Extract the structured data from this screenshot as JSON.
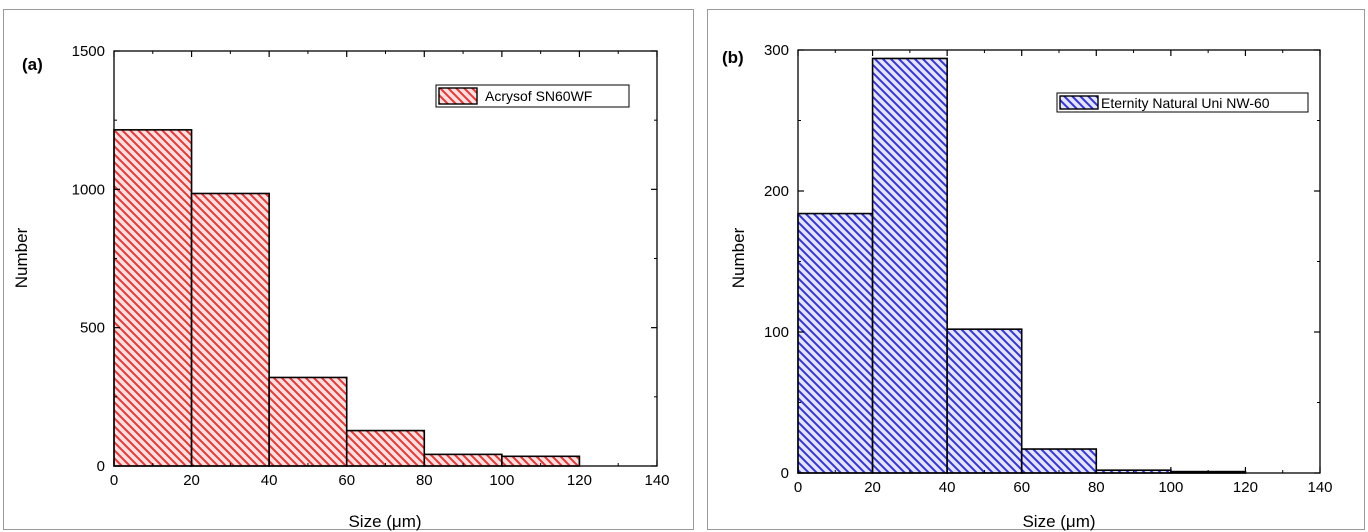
{
  "chart_data": [
    {
      "type": "bar",
      "panel_label": "(a)",
      "series": [
        {
          "name": "Acrysof SN60WF",
          "values": [
            1215,
            985,
            320,
            128,
            42,
            35
          ],
          "color": "#ee3333",
          "fill": "#fde0e0",
          "hatch": "diagonal-down-right"
        }
      ],
      "bin_edges": [
        0,
        20,
        40,
        60,
        80,
        100,
        120
      ],
      "xlabel": "Size (μm)",
      "ylabel": "Number",
      "xlim": [
        0,
        140
      ],
      "ylim": [
        0,
        1500
      ],
      "xticks": [
        0,
        20,
        40,
        60,
        80,
        100,
        120,
        140
      ],
      "yticks": [
        0,
        500,
        1000,
        1500
      ],
      "legend": "top-right",
      "grid": false
    },
    {
      "type": "bar",
      "panel_label": "(b)",
      "series": [
        {
          "name": "Eternity Natural Uni NW-60",
          "values": [
            184,
            294,
            102,
            17,
            2,
            1
          ],
          "color": "#3333dd",
          "fill": "#e4e4fb",
          "hatch": "diagonal-down-right"
        }
      ],
      "bin_edges": [
        0,
        20,
        40,
        60,
        80,
        100,
        120
      ],
      "xlabel": "Size (μm)",
      "ylabel": "Number",
      "xlim": [
        0,
        140
      ],
      "ylim": [
        0,
        300
      ],
      "xticks": [
        0,
        20,
        40,
        60,
        80,
        100,
        120,
        140
      ],
      "yticks": [
        0,
        100,
        200,
        300
      ],
      "legend": "top-right",
      "grid": false
    }
  ]
}
